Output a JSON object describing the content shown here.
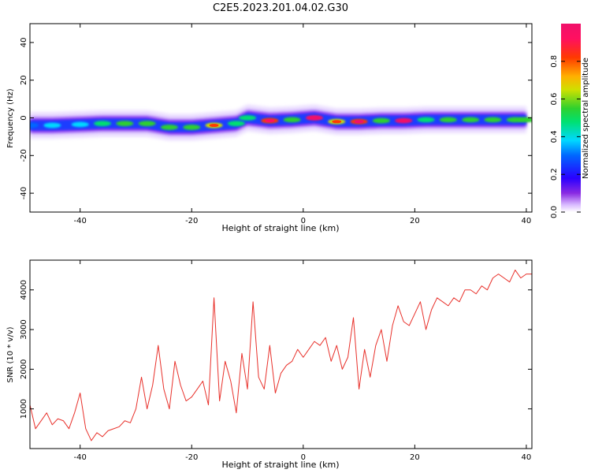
{
  "title": "C2E5.2023.201.04.02.G30",
  "chart_data": [
    {
      "type": "heatmap",
      "xlabel": "Height of straight line (km)",
      "ylabel": "Frequency (Hz)",
      "xlim": [
        -49,
        41
      ],
      "ylim": [
        -50,
        50
      ],
      "xticks": [
        -40,
        -20,
        0,
        20,
        40
      ],
      "yticks": [
        -40,
        -20,
        0,
        20,
        40
      ],
      "colorbar": {
        "label": "Normalized spectral amplitude",
        "range": [
          0,
          1
        ],
        "ticks": [
          0.0,
          0.2,
          0.4,
          0.6,
          0.8
        ],
        "tick_labels": [
          "0.0",
          "0.2",
          "0.4",
          "0.6",
          "0.8"
        ]
      },
      "ridge": {
        "x": [
          -49,
          -45,
          -40,
          -36,
          -32,
          -28,
          -24,
          -20,
          -16,
          -12,
          -10,
          -6,
          -2,
          2,
          6,
          10,
          14,
          18,
          22,
          26,
          30,
          34,
          38,
          40
        ],
        "freq": [
          -4,
          -4,
          -3.5,
          -3,
          -3,
          -3,
          -5,
          -5,
          -4,
          -3,
          0,
          -1.5,
          -1,
          0,
          -2,
          -2,
          -1.5,
          -1.5,
          -1,
          -1,
          -1,
          -1,
          -1,
          -1
        ],
        "amplitude": [
          0.3,
          0.35,
          0.35,
          0.4,
          0.5,
          0.55,
          0.5,
          0.5,
          0.6,
          0.45,
          0.45,
          0.75,
          0.55,
          0.85,
          0.65,
          0.8,
          0.5,
          1.0,
          0.45,
          0.5,
          0.5,
          0.5,
          0.5,
          0.5
        ]
      },
      "grid": false
    },
    {
      "type": "line",
      "xlabel": "Height of straight line (km)",
      "ylabel": "SNR (10 * v/v)",
      "xlim": [
        -49,
        41
      ],
      "ylim": [
        0,
        4750
      ],
      "xticks": [
        -40,
        -20,
        0,
        20,
        40
      ],
      "yticks": [
        1000,
        2000,
        3000,
        4000
      ],
      "color": "#e8302a",
      "x": [
        -49,
        -48,
        -47,
        -46,
        -45,
        -44,
        -43,
        -42,
        -41,
        -40,
        -39,
        -38,
        -37,
        -36,
        -35,
        -34,
        -33,
        -32,
        -31,
        -30,
        -29,
        -28,
        -27,
        -26,
        -25,
        -24,
        -23,
        -22,
        -21,
        -20,
        -19,
        -18,
        -17,
        -16,
        -15,
        -14,
        -13,
        -12,
        -11,
        -10,
        -9,
        -8,
        -7,
        -6,
        -5,
        -4,
        -3,
        -2,
        -1,
        0,
        1,
        2,
        3,
        4,
        5,
        6,
        7,
        8,
        9,
        10,
        11,
        12,
        13,
        14,
        15,
        16,
        17,
        18,
        19,
        20,
        21,
        22,
        23,
        24,
        25,
        26,
        27,
        28,
        29,
        30,
        31,
        32,
        33,
        34,
        35,
        36,
        37,
        38,
        39,
        40,
        41
      ],
      "y": [
        1100,
        500,
        700,
        900,
        600,
        750,
        700,
        500,
        900,
        1400,
        500,
        200,
        400,
        300,
        450,
        500,
        550,
        700,
        650,
        1000,
        1800,
        1000,
        1600,
        2600,
        1500,
        1000,
        2200,
        1600,
        1200,
        1300,
        1500,
        1700,
        1100,
        3800,
        1200,
        2200,
        1700,
        900,
        2400,
        1500,
        3700,
        1800,
        1500,
        2600,
        1400,
        1900,
        2100,
        2200,
        2500,
        2300,
        2500,
        2700,
        2600,
        2800,
        2200,
        2600,
        2000,
        2300,
        3300,
        1500,
        2500,
        1800,
        2600,
        3000,
        2200,
        3100,
        3600,
        3200,
        3100,
        3400,
        3700,
        3000,
        3500,
        3800,
        3700,
        3600,
        3800,
        3700,
        4000,
        4000,
        3900,
        4100,
        4000,
        4300,
        4400,
        4300,
        4200,
        4500,
        4300,
        4400,
        4400
      ],
      "grid": false
    }
  ]
}
